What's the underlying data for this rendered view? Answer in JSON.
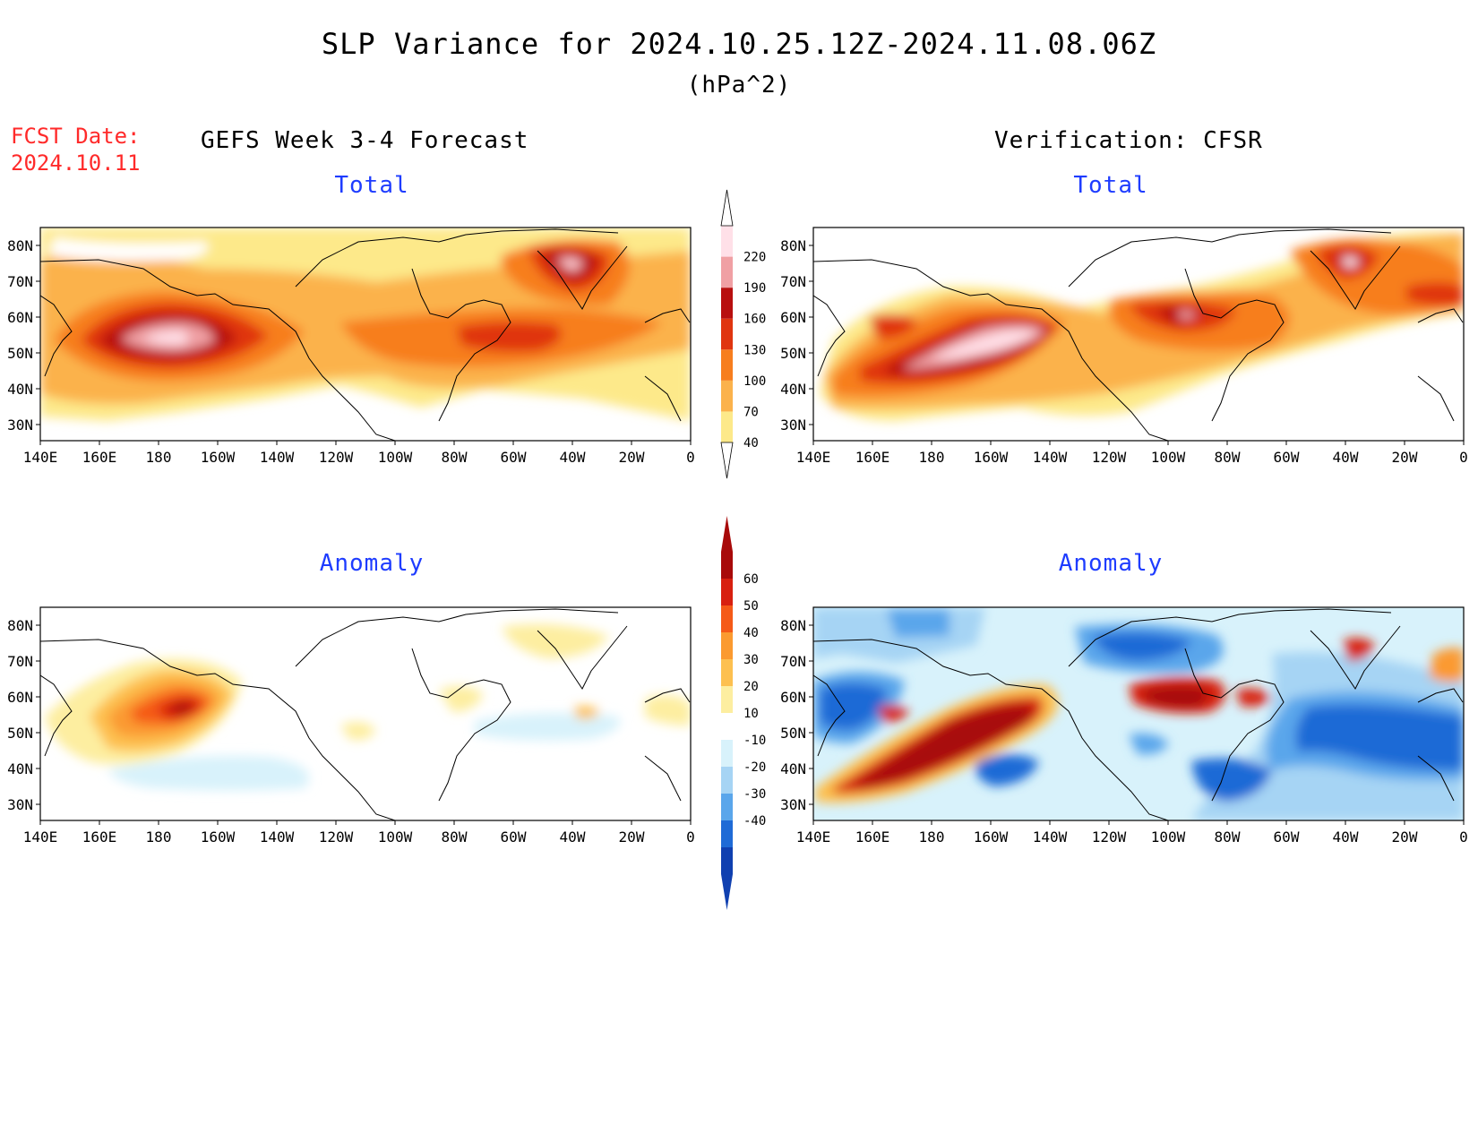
{
  "header": {
    "title": "SLP Variance for 2024.10.25.12Z-2024.11.08.06Z",
    "units": "(hPa^2)",
    "fcst_label": "FCST Date:",
    "fcst_date": "2024.10.11",
    "forecast_title": "GEFS Week 3-4 Forecast",
    "verification_title": "Verification: CFSR"
  },
  "panels": {
    "total_label": "Total",
    "anomaly_label": "Anomaly"
  },
  "axes": {
    "lat_labels": [
      "80N",
      "70N",
      "60N",
      "50N",
      "40N",
      "30N"
    ],
    "lon_labels": [
      "140E",
      "160E",
      "180",
      "160W",
      "140W",
      "120W",
      "100W",
      "80W",
      "60W",
      "40W",
      "20W",
      "0"
    ],
    "lat_range": [
      25,
      85
    ],
    "lon_range": [
      "140E",
      "0"
    ]
  },
  "colorbars": {
    "total": {
      "levels": [
        "40",
        "70",
        "100",
        "130",
        "160",
        "190",
        "220"
      ],
      "colors": [
        "#fde98a",
        "#fbb24c",
        "#f77e1e",
        "#e03510",
        "#b80f0f",
        "#f0a0a4",
        "#ffe0e8"
      ]
    },
    "anomaly": {
      "levels": [
        "60",
        "50",
        "40",
        "30",
        "20",
        "10",
        "-10",
        "-20",
        "-30",
        "-40"
      ],
      "colors": [
        "#a80a0a",
        "#d82010",
        "#f55a18",
        "#fb9a30",
        "#fdc050",
        "#fdeea0",
        "#ffffff",
        "#d8f2fb",
        "#a6d4f4",
        "#5aa6eb",
        "#1f6bd6",
        "#1040b0"
      ]
    }
  },
  "colors": {
    "title_red": "#ff2a2a",
    "panel_title_blue": "#1e3cff"
  }
}
